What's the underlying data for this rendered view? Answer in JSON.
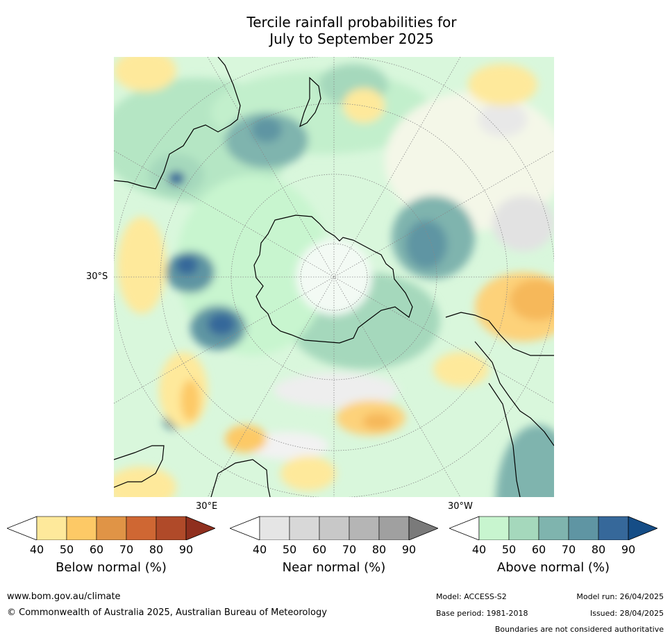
{
  "title": {
    "line1": "Tercile rainfall probabilities for",
    "line2": "July to September 2025"
  },
  "map": {
    "lat_label": "30°S",
    "lon_label_east": "30°E",
    "lon_label_west": "30°W",
    "colors": {
      "land_outline": "#000000",
      "graticule": "#888888"
    }
  },
  "colorbars": [
    {
      "label": "Below normal (%)",
      "ticks": [
        "40",
        "50",
        "60",
        "70",
        "80",
        "90"
      ],
      "colors": [
        "#ffffff",
        "#fee99b",
        "#fdc966",
        "#e09446",
        "#cf6733",
        "#b04a29",
        "#8f2f1e"
      ]
    },
    {
      "label": "Near normal (%)",
      "ticks": [
        "40",
        "50",
        "60",
        "70",
        "80",
        "90"
      ],
      "colors": [
        "#ffffff",
        "#e5e5e5",
        "#d8d8d8",
        "#c8c8c8",
        "#b5b5b5",
        "#a0a0a0",
        "#7a7a7a"
      ]
    },
    {
      "label": "Above normal (%)",
      "ticks": [
        "40",
        "50",
        "60",
        "70",
        "80",
        "90"
      ],
      "colors": [
        "#ffffff",
        "#c8f5cf",
        "#a5d8bc",
        "#7fb4ae",
        "#5f95a3",
        "#36689a",
        "#154d86"
      ]
    }
  ],
  "footer": {
    "website": "www.bom.gov.au/climate",
    "copyright": "© Commonwealth of Australia 2025, Australian Bureau of Meteorology",
    "model": "Model: ACCESS-S2",
    "model_run": "Model run: 26/04/2025",
    "base_period": "Base period: 1981-2018",
    "issued": "Issued: 28/04/2025",
    "disclaimer": "Boundaries are not considered authoritative"
  }
}
